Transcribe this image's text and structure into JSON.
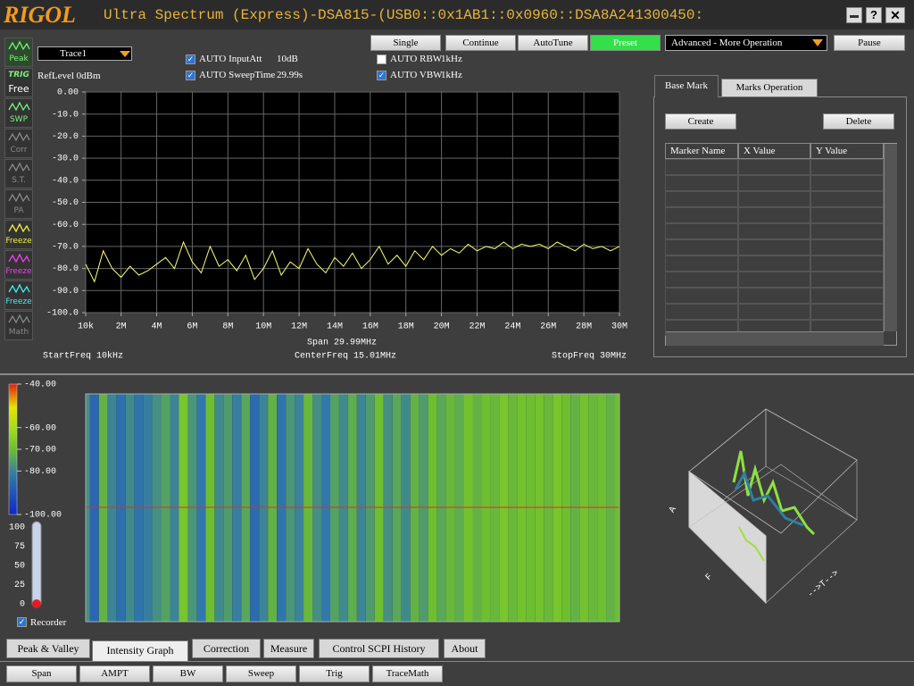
{
  "header": {
    "logo": "RIGOL",
    "title": "Ultra Spectrum (Express)-DSA815-(USB0::0x1AB1::0x0960::DSA8A241300450:",
    "help": "?"
  },
  "sidebar": [
    {
      "label": "Peak",
      "color": "#7cf07c"
    },
    {
      "tag": "TRIG",
      "label": "Free",
      "color": "#7cf07c"
    },
    {
      "label": "SWP",
      "color": "#7cf07c"
    },
    {
      "label": "Corr",
      "color": "#8a8a8a"
    },
    {
      "label": "S.T.",
      "color": "#8a8a8a"
    },
    {
      "label": "PA",
      "color": "#8a8a8a"
    },
    {
      "label": "Freeze",
      "color": "#f0f040"
    },
    {
      "label": "Freeze",
      "color": "#f040f0"
    },
    {
      "label": "Freeze",
      "color": "#40f0f0"
    },
    {
      "label": "Math",
      "color": "#8a8a8a"
    }
  ],
  "controls": {
    "trace_select": "Trace1",
    "ref_level": "RefLevel  0dBm",
    "checkboxes": [
      {
        "label": "AUTO InputAtt",
        "value": "10dB",
        "checked": true
      },
      {
        "label": "AUTO SweepTime",
        "value": "29.99s",
        "checked": true
      },
      {
        "label": "AUTO RBW",
        "value": "1kHz",
        "checked": false
      },
      {
        "label": "AUTO VBW",
        "value": "1kHz",
        "checked": true
      }
    ],
    "buttons": [
      "Single",
      "Continue",
      "AutoTune",
      "Preset"
    ],
    "active_button": "Preset",
    "operation_select": "Advanced - More Operation",
    "pause": "Pause"
  },
  "chart_data": {
    "type": "line",
    "color": "#ffff70",
    "grid": true,
    "x": [
      0.01,
      0.5,
      1,
      1.5,
      2,
      2.5,
      3,
      3.5,
      4,
      4.5,
      5,
      5.5,
      6,
      6.5,
      7,
      7.5,
      8,
      8.5,
      9,
      9.5,
      10,
      10.5,
      11,
      11.5,
      12,
      12.5,
      13,
      13.5,
      14,
      14.5,
      15,
      15.5,
      16,
      16.5,
      17,
      17.5,
      18,
      18.5,
      19,
      19.5,
      20,
      20.5,
      21,
      21.5,
      22,
      22.5,
      23,
      23.5,
      24,
      24.5,
      25,
      25.5,
      26,
      26.5,
      27,
      27.5,
      28,
      28.5,
      29,
      29.5,
      30
    ],
    "values": [
      -78,
      -86,
      -72,
      -80,
      -84,
      -79,
      -83,
      -81,
      -78,
      -75,
      -80,
      -68,
      -77,
      -82,
      -70,
      -79,
      -76,
      -81,
      -74,
      -85,
      -80,
      -72,
      -83,
      -77,
      -80,
      -71,
      -78,
      -82,
      -75,
      -79,
      -73,
      -80,
      -76,
      -70,
      -78,
      -74,
      -79,
      -72,
      -76,
      -70,
      -74,
      -71,
      -73,
      -69,
      -72,
      -70,
      -71,
      -68,
      -71,
      -69,
      -70,
      -69,
      -71,
      -68,
      -70,
      -72,
      -69,
      -71,
      -70,
      -72,
      -70
    ],
    "xlim": [
      0.01,
      30
    ],
    "ylim": [
      -100,
      0
    ],
    "xticks": [
      {
        "value": 0.01,
        "label": "10k"
      },
      {
        "value": 2,
        "label": "2M"
      },
      {
        "value": 4,
        "label": "4M"
      },
      {
        "value": 6,
        "label": "6M"
      },
      {
        "value": 8,
        "label": "8M"
      },
      {
        "value": 10,
        "label": "10M"
      },
      {
        "value": 12,
        "label": "12M"
      },
      {
        "value": 14,
        "label": "14M"
      },
      {
        "value": 16,
        "label": "16M"
      },
      {
        "value": 18,
        "label": "18M"
      },
      {
        "value": 20,
        "label": "20M"
      },
      {
        "value": 22,
        "label": "22M"
      },
      {
        "value": 24,
        "label": "24M"
      },
      {
        "value": 26,
        "label": "26M"
      },
      {
        "value": 28,
        "label": "28M"
      },
      {
        "value": 30,
        "label": "30M"
      }
    ],
    "yticks": [
      {
        "value": 0,
        "label": "0.00"
      },
      {
        "value": -10,
        "label": "-10.0"
      },
      {
        "value": -20,
        "label": "-20.0"
      },
      {
        "value": -30,
        "label": "-30.0"
      },
      {
        "value": -40,
        "label": "-40.0"
      },
      {
        "value": -50,
        "label": "-50.0"
      },
      {
        "value": -60,
        "label": "-60.0"
      },
      {
        "value": -70,
        "label": "-70.0"
      },
      {
        "value": -80,
        "label": "-80.0"
      },
      {
        "value": -90,
        "label": "-90.0"
      },
      {
        "value": -100,
        "label": "-100.0"
      }
    ],
    "span_label": "Span  29.99MHz",
    "start_label": "StartFreq  10kHz",
    "center_label": "CenterFreq  15.01MHz",
    "stop_label": "StopFreq  30MHz"
  },
  "markers": {
    "tabs": [
      "Base Mark",
      "Marks Operation"
    ],
    "create": "Create",
    "delete": "Delete",
    "columns": [
      "Marker Name",
      "X Value",
      "Y Value"
    ]
  },
  "waterfall": {
    "clim": [
      -100,
      -40
    ],
    "colorbar_ticks": [
      {
        "value": -40,
        "label": "-40.00"
      },
      {
        "value": -60,
        "label": "-60.00"
      },
      {
        "value": -70,
        "label": "-70.00"
      },
      {
        "value": -80,
        "label": "-80.00"
      },
      {
        "value": -100,
        "label": "-100.00"
      }
    ],
    "recorder_ticks": [
      100,
      75,
      50,
      25,
      0
    ],
    "recorder_label": "Recorder",
    "recorder_checked": true,
    "axis_a": "A",
    "axis_f": "F",
    "axis_t": "-->T-->"
  },
  "tabs": {
    "items": [
      "Peak & Valley",
      "Intensity Graph",
      "Correction",
      "Measure",
      "Control SCPI History",
      "About"
    ],
    "active": 1
  },
  "buttons": [
    "Span",
    "AMPT",
    "BW",
    "Sweep",
    "Trig",
    "TraceMath"
  ]
}
